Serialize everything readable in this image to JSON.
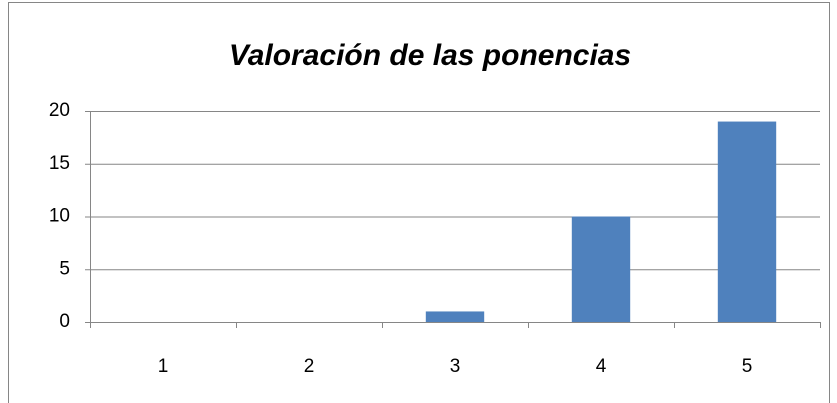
{
  "chart_data": {
    "type": "bar",
    "title": "Valoración de las ponencias",
    "categories": [
      "1",
      "2",
      "3",
      "4",
      "5"
    ],
    "values": [
      0,
      0,
      1,
      10,
      19
    ],
    "color": "#4f81bd",
    "ylim": [
      0,
      20
    ],
    "yticks": [
      0,
      5,
      10,
      15,
      20
    ],
    "grid": true
  }
}
